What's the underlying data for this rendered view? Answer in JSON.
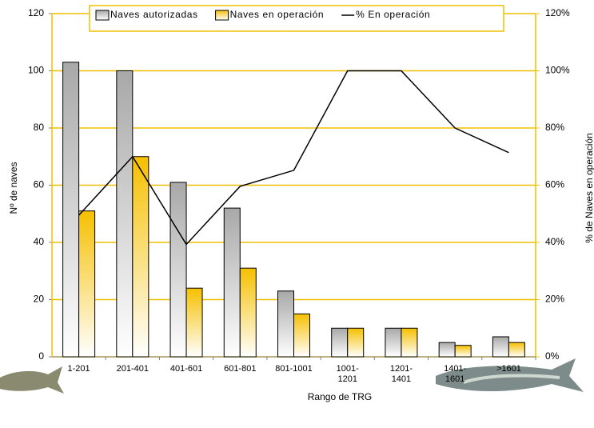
{
  "chart_data": {
    "type": "bar",
    "categories": [
      "1-201",
      "201-401",
      "401-601",
      "601-801",
      "801-1001",
      "1001-1201",
      "1201-1401",
      "1401-1601",
      ">1601"
    ],
    "series": [
      {
        "name": "Naves autorizadas",
        "color": "#a8a8a8",
        "values": [
          103,
          100,
          61,
          52,
          23,
          10,
          10,
          5,
          7
        ]
      },
      {
        "name": "Naves en operación",
        "color": "#f5c000",
        "values": [
          51,
          70,
          24,
          31,
          15,
          10,
          10,
          4,
          5
        ]
      },
      {
        "name": "% En operación",
        "color": "#000000",
        "type": "line",
        "axis": "y2",
        "values": [
          49.5,
          70,
          39.3,
          59.6,
          65.2,
          100,
          100,
          80,
          71.4
        ]
      }
    ],
    "x_label": "Rango de TRG",
    "y_label": "Nº de naves",
    "y2_label": "% de Naves en operación",
    "ylim": [
      0,
      120
    ],
    "yticks": [
      0,
      20,
      40,
      60,
      80,
      100,
      120
    ],
    "y2lim": [
      0,
      120
    ],
    "y2ticks": [
      {
        "value": 0,
        "label": "0%"
      },
      {
        "value": 20,
        "label": "20%"
      },
      {
        "value": 40,
        "label": "40%"
      },
      {
        "value": 60,
        "label": "60%"
      },
      {
        "value": 80,
        "label": "80%"
      },
      {
        "value": 100,
        "label": "100%"
      },
      {
        "value": 120,
        "label": "120%"
      }
    ],
    "grid": true,
    "grid_color": "#f0c000",
    "legend": "top"
  }
}
